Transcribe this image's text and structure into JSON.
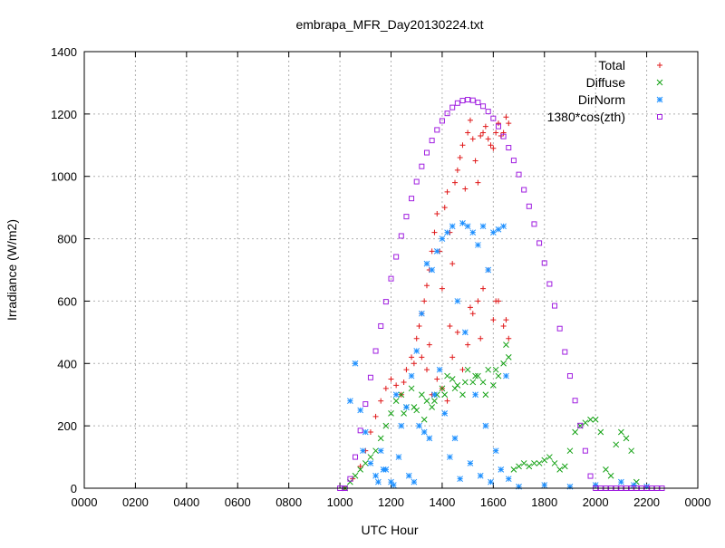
{
  "chart_data": {
    "type": "scatter",
    "title": "embrapa_MFR_Day20130224.txt",
    "xlabel": "UTC Hour",
    "ylabel": "Irradiance (W/m2)",
    "xlim": [
      0,
      24
    ],
    "ylim": [
      0,
      1400
    ],
    "x_ticks": [
      {
        "value": 0,
        "label": "0000"
      },
      {
        "value": 2,
        "label": "0200"
      },
      {
        "value": 4,
        "label": "0400"
      },
      {
        "value": 6,
        "label": "0600"
      },
      {
        "value": 8,
        "label": "0800"
      },
      {
        "value": 10,
        "label": "1000"
      },
      {
        "value": 12,
        "label": "1200"
      },
      {
        "value": 14,
        "label": "1400"
      },
      {
        "value": 16,
        "label": "1600"
      },
      {
        "value": 18,
        "label": "1800"
      },
      {
        "value": 20,
        "label": "2000"
      },
      {
        "value": 22,
        "label": "2200"
      },
      {
        "value": 24,
        "label": "0000"
      }
    ],
    "y_ticks": [
      0,
      200,
      400,
      600,
      800,
      1000,
      1200,
      1400
    ],
    "grid": true,
    "legend_position": "top-right",
    "series": [
      {
        "name": "Total",
        "marker": "plus",
        "color": "#e0191a",
        "x": [
          10.2,
          10.5,
          10.8,
          11.0,
          11.2,
          11.4,
          11.6,
          11.8,
          12.0,
          12.2,
          12.4,
          12.6,
          12.8,
          13.0,
          13.1,
          13.2,
          13.3,
          13.4,
          13.5,
          13.6,
          13.7,
          13.8,
          13.9,
          14.0,
          14.1,
          14.2,
          14.3,
          14.4,
          14.5,
          14.6,
          14.7,
          14.8,
          14.9,
          15.0,
          15.1,
          15.2,
          15.3,
          15.4,
          15.5,
          15.6,
          15.7,
          15.8,
          15.9,
          16.0,
          16.1,
          16.2,
          16.3,
          16.4,
          16.5,
          16.6,
          13.2,
          13.4,
          13.6,
          13.8,
          14.0,
          14.2,
          14.4,
          14.6,
          14.8,
          15.0,
          15.2,
          15.4,
          15.6,
          15.8,
          16.0,
          16.2,
          16.4,
          16.6,
          12.5,
          12.9,
          13.5,
          14.3,
          15.1,
          15.5,
          16.1,
          16.5
        ],
        "y": [
          0,
          30,
          70,
          120,
          180,
          230,
          280,
          320,
          350,
          330,
          300,
          380,
          420,
          480,
          520,
          560,
          600,
          650,
          700,
          760,
          820,
          880,
          760,
          640,
          900,
          950,
          820,
          720,
          980,
          1020,
          1060,
          1100,
          960,
          1140,
          1180,
          1120,
          1050,
          980,
          1130,
          1140,
          1160,
          1120,
          1100,
          1090,
          1140,
          1170,
          1130,
          1140,
          1190,
          1170,
          420,
          380,
          300,
          350,
          320,
          280,
          420,
          500,
          380,
          460,
          560,
          600,
          640,
          700,
          540,
          600,
          520,
          480,
          340,
          400,
          460,
          520,
          580,
          480,
          600,
          540
        ]
      },
      {
        "name": "Diffuse",
        "marker": "cross",
        "color": "#13a113",
        "x": [
          10.2,
          10.4,
          10.6,
          10.8,
          11.0,
          11.2,
          11.4,
          11.6,
          11.8,
          12.0,
          12.2,
          12.4,
          12.6,
          12.8,
          13.0,
          13.2,
          13.4,
          13.6,
          13.8,
          14.0,
          14.2,
          14.4,
          14.6,
          14.8,
          15.0,
          15.2,
          15.4,
          15.6,
          15.8,
          16.0,
          16.2,
          16.4,
          16.6,
          16.8,
          17.0,
          17.2,
          17.4,
          17.6,
          17.8,
          18.0,
          18.2,
          18.4,
          18.6,
          18.8,
          19.0,
          19.2,
          19.4,
          19.6,
          19.8,
          20.0,
          20.2,
          20.4,
          20.6,
          20.8,
          21.0,
          21.2,
          21.4,
          21.6,
          12.5,
          12.9,
          13.3,
          13.7,
          14.1,
          14.5,
          14.9,
          15.3,
          15.7,
          16.1,
          16.5
        ],
        "y": [
          0,
          20,
          40,
          60,
          80,
          100,
          120,
          160,
          200,
          240,
          280,
          300,
          260,
          320,
          250,
          300,
          280,
          260,
          300,
          320,
          360,
          350,
          330,
          300,
          380,
          340,
          360,
          340,
          380,
          330,
          360,
          400,
          420,
          60,
          70,
          80,
          70,
          80,
          80,
          90,
          100,
          80,
          60,
          70,
          120,
          180,
          200,
          210,
          220,
          220,
          180,
          60,
          40,
          140,
          180,
          160,
          120,
          20,
          240,
          260,
          220,
          280,
          300,
          320,
          340,
          360,
          300,
          380,
          460
        ]
      },
      {
        "name": "DirNorm",
        "marker": "star",
        "color": "#1e90ff",
        "x": [
          10.4,
          10.6,
          10.8,
          11.0,
          11.2,
          11.4,
          11.6,
          11.8,
          12.0,
          12.2,
          12.4,
          12.6,
          12.8,
          13.0,
          13.2,
          13.4,
          13.6,
          13.8,
          14.0,
          14.2,
          14.4,
          14.6,
          14.8,
          15.0,
          15.2,
          15.4,
          15.6,
          15.8,
          16.0,
          16.2,
          16.4,
          16.6,
          11.5,
          12.1,
          12.7,
          13.1,
          13.5,
          13.9,
          14.3,
          14.7,
          15.1,
          15.5,
          15.9,
          16.3,
          10.9,
          11.7,
          12.3,
          12.9,
          13.3,
          13.7,
          14.1,
          14.5,
          14.9,
          15.3,
          15.7,
          16.1,
          16.5,
          17.0,
          18.0,
          19.0,
          20.0,
          21.0,
          21.5,
          22.0
        ],
        "y": [
          280,
          400,
          250,
          180,
          80,
          40,
          120,
          60,
          20,
          300,
          200,
          260,
          360,
          440,
          560,
          720,
          700,
          760,
          800,
          820,
          840,
          600,
          850,
          840,
          820,
          780,
          840,
          700,
          820,
          830,
          840,
          30,
          20,
          10,
          40,
          200,
          160,
          380,
          100,
          30,
          80,
          40,
          20,
          60,
          120,
          60,
          100,
          20,
          180,
          300,
          240,
          160,
          500,
          300,
          200,
          120,
          360,
          5,
          10,
          5,
          10,
          20,
          10,
          5
        ]
      },
      {
        "name": "1380*cos(zth)",
        "marker": "square",
        "color": "#a01ee0",
        "x": [
          10.0,
          10.2,
          10.4,
          10.6,
          10.8,
          11.0,
          11.2,
          11.4,
          11.6,
          11.8,
          12.0,
          12.2,
          12.4,
          12.6,
          12.8,
          13.0,
          13.2,
          13.4,
          13.6,
          13.8,
          14.0,
          14.2,
          14.4,
          14.6,
          14.8,
          15.0,
          15.2,
          15.4,
          15.6,
          15.8,
          16.0,
          16.2,
          16.4,
          16.6,
          16.8,
          17.0,
          17.2,
          17.4,
          17.6,
          17.8,
          18.0,
          18.2,
          18.4,
          18.6,
          18.8,
          19.0,
          19.2,
          19.4,
          19.6,
          19.8,
          20.0,
          20.2,
          20.4,
          20.6,
          20.8,
          21.0,
          21.2,
          21.4,
          21.6,
          21.8,
          22.0,
          22.2,
          22.4,
          22.6
        ],
        "y": [
          0,
          0,
          30,
          100,
          185,
          270,
          355,
          440,
          520,
          598,
          672,
          742,
          809,
          871,
          929,
          983,
          1032,
          1076,
          1115,
          1149,
          1178,
          1202,
          1221,
          1235,
          1243,
          1246,
          1244,
          1237,
          1225,
          1208,
          1186,
          1160,
          1128,
          1092,
          1051,
          1006,
          957,
          904,
          847,
          786,
          722,
          655,
          585,
          512,
          437,
          360,
          281,
          201,
          120,
          39,
          0,
          0,
          0,
          0,
          0,
          0,
          0,
          0,
          0,
          0,
          0,
          0,
          0,
          0
        ]
      }
    ]
  }
}
